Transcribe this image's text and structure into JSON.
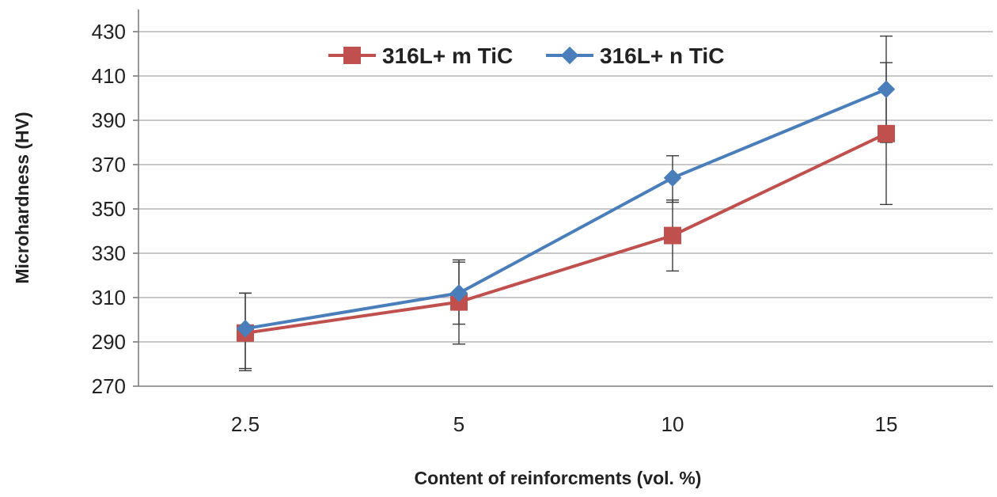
{
  "chart_data": {
    "type": "line",
    "title": "",
    "xlabel": "Content of reinforcments (vol. %)",
    "ylabel": "Microhardness (HV)",
    "categories": [
      "2.5",
      "5",
      "10",
      "15"
    ],
    "yticks": [
      270,
      290,
      310,
      330,
      350,
      370,
      390,
      410,
      430
    ],
    "ylim": [
      270,
      430
    ],
    "grid": true,
    "legend_position": "top-center",
    "series": [
      {
        "name": "316L+ m TiC",
        "color": "#c0504d",
        "marker": "square",
        "values": [
          294,
          308,
          338,
          384
        ],
        "error_low": [
          277,
          289,
          322,
          352
        ],
        "error_high": [
          312,
          327,
          354,
          416
        ]
      },
      {
        "name": "316L+ n TiC",
        "color": "#4a7ebb",
        "marker": "diamond",
        "values": [
          296,
          312,
          364,
          404
        ],
        "error_low": [
          278,
          298,
          353,
          380
        ],
        "error_high": [
          312,
          326,
          374,
          428
        ]
      }
    ]
  }
}
